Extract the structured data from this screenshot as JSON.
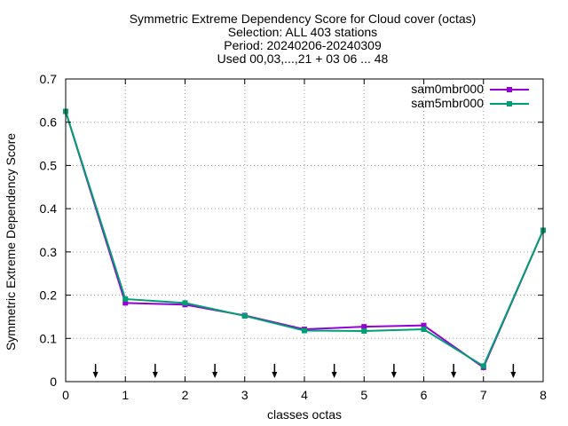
{
  "chart_data": {
    "type": "line",
    "title_lines": [
      "Symmetric Extreme Dependency Score  for Cloud cover (octas)",
      "Selection: ALL    403 stations",
      "Period: 20240206-20240309",
      "Used 00,03,...,21 + 03 06 ... 48"
    ],
    "xlabel": "classes octas",
    "ylabel": "Symmetric Extreme Dependency Score",
    "xlim": [
      0,
      8
    ],
    "ylim": [
      0,
      0.7
    ],
    "xticks": [
      0,
      1,
      2,
      3,
      4,
      5,
      6,
      7,
      8
    ],
    "yticks": [
      0,
      0.1,
      0.2,
      0.3,
      0.4,
      0.5,
      0.6,
      0.7
    ],
    "xtick_labels": [
      "0",
      "1",
      "2",
      "3",
      "4",
      "5",
      "6",
      "7",
      "8"
    ],
    "ytick_labels": [
      "0",
      "0.1",
      "0.2",
      "0.3",
      "0.4",
      "0.5",
      "0.6",
      "0.7"
    ],
    "grid": true,
    "legend_position": "top-right",
    "arrow_markers_x": [
      0.5,
      1.5,
      2.5,
      3.5,
      4.5,
      5.5,
      6.5,
      7.5
    ],
    "series": [
      {
        "name": "sam0mbr000",
        "color": "#9400d3",
        "x": [
          0,
          1,
          2,
          3,
          4,
          5,
          6,
          7,
          8
        ],
        "y": [
          0.625,
          0.182,
          0.178,
          0.153,
          0.121,
          0.127,
          0.13,
          0.033,
          0.35
        ]
      },
      {
        "name": "sam5mbr000",
        "color": "#009e73",
        "x": [
          0,
          1,
          2,
          3,
          4,
          5,
          6,
          7,
          8
        ],
        "y": [
          0.625,
          0.191,
          0.182,
          0.152,
          0.118,
          0.117,
          0.121,
          0.036,
          0.35
        ]
      }
    ]
  }
}
